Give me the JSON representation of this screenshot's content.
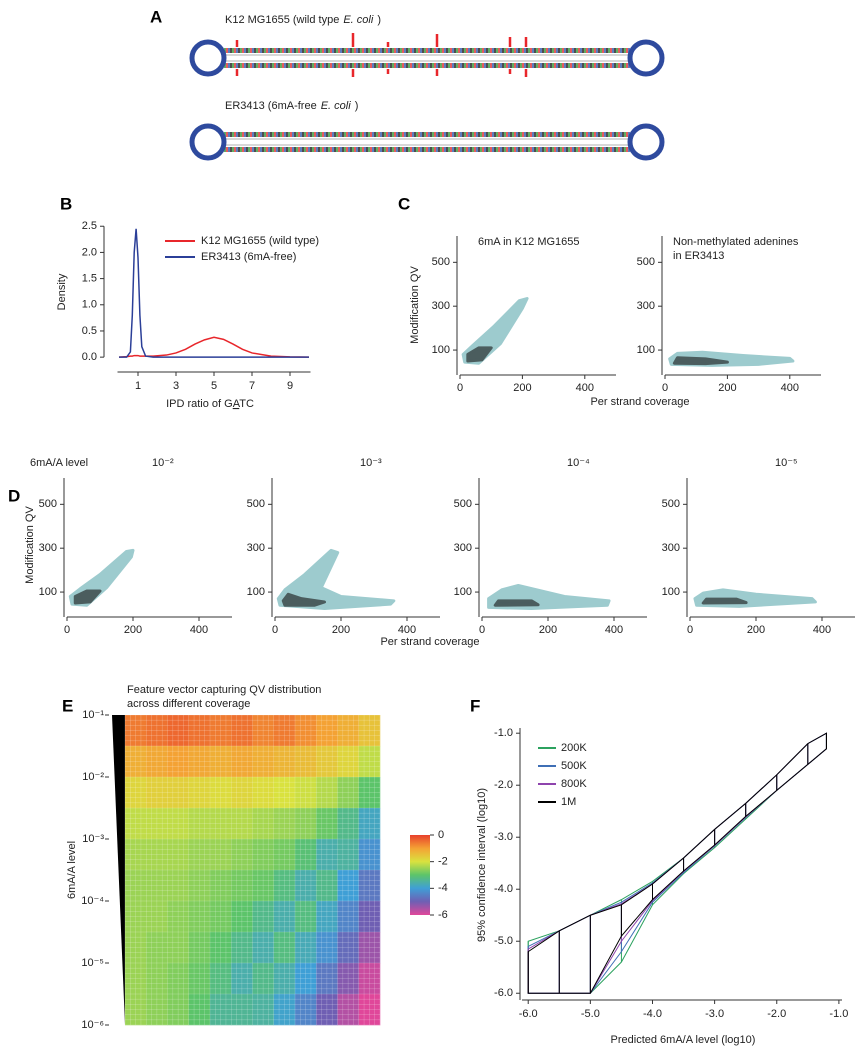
{
  "panel_labels": [
    "A",
    "B",
    "C",
    "D",
    "E",
    "F"
  ],
  "panel_a": {
    "strains": [
      [
        "K12 MG1655 (wild type",
        "E. coli",
        ")"
      ],
      [
        "ER3413 (6mA-free",
        "E. coli",
        ")"
      ]
    ]
  },
  "panel_c": {
    "ylabel": "Modification QV",
    "xlabel": "Per strand coverage"
  },
  "panel_d": {
    "row_label": "6mA/A level",
    "ylabel": "Modification QV",
    "xlabel": "Per strand coverage"
  },
  "chart_data": [
    {
      "type": "line",
      "ylabel": "Density",
      "xlabel": [
        "IPD ratio of G",
        "A",
        "TC"
      ],
      "x": [
        0,
        0.4,
        0.6,
        0.7,
        0.8,
        0.9,
        1.0,
        1.1,
        1.2,
        1.4,
        1.8,
        2.5,
        3,
        3.5,
        4,
        4.5,
        5,
        5.5,
        6,
        6.5,
        7,
        8,
        9,
        10
      ],
      "xlim": [
        -0.5,
        10.5
      ],
      "ylim": [
        -0.15,
        2.6
      ],
      "xticks": [
        1,
        3,
        5,
        7,
        9
      ],
      "yticks": [
        {
          "value": 0,
          "label": "0.0"
        },
        {
          "value": 0.5,
          "label": "0.5"
        },
        {
          "value": 1,
          "label": "1.0"
        },
        {
          "value": 1.5,
          "label": "1.5"
        },
        {
          "value": 2,
          "label": "2.0"
        },
        {
          "value": 2.5,
          "label": "2.5"
        }
      ],
      "series": [
        {
          "name": "K12 MG1655 (wild type)",
          "color": "#e8262b",
          "values": [
            0,
            0.01,
            0.02,
            0.02,
            0.03,
            0.03,
            0.03,
            0.02,
            0.02,
            0.02,
            0.02,
            0.04,
            0.08,
            0.15,
            0.25,
            0.33,
            0.38,
            0.34,
            0.25,
            0.15,
            0.08,
            0.02,
            0.005,
            0
          ]
        },
        {
          "name": "ER3413 (6mA-free)",
          "color": "#2b3f98",
          "values": [
            0,
            0,
            0.1,
            0.8,
            2.0,
            2.45,
            1.9,
            0.8,
            0.2,
            0.02,
            0,
            0,
            0,
            0,
            0,
            0,
            0,
            0,
            0,
            0,
            0,
            0,
            0,
            0
          ]
        }
      ]
    },
    {
      "type": "contour",
      "title": "6mA in K12 MG1655",
      "xlim": [
        0,
        500
      ],
      "ylim": [
        0,
        620
      ],
      "xticks": [
        0,
        200,
        400
      ],
      "yticks": [
        100,
        300,
        500
      ],
      "levels": [
        {
          "color": "#9dcbce",
          "x": [
            15,
            60,
            130,
            200,
            215,
            190,
            110,
            40,
            10
          ],
          "y": [
            45,
            40,
            130,
            290,
            335,
            325,
            210,
            120,
            80
          ]
        },
        {
          "color": "#3d4a4b",
          "x": [
            25,
            70,
            100,
            60,
            25
          ],
          "y": [
            50,
            55,
            110,
            110,
            80
          ]
        }
      ]
    },
    {
      "type": "contour",
      "title": [
        "Non-methylated adenines",
        "in ER3413"
      ],
      "xlim": [
        0,
        500
      ],
      "ylim": [
        0,
        620
      ],
      "xticks": [
        0,
        200,
        400
      ],
      "yticks": [
        100,
        300,
        500
      ],
      "levels": [
        {
          "color": "#9dcbce",
          "x": [
            20,
            150,
            300,
            410,
            400,
            250,
            120,
            40,
            15
          ],
          "y": [
            35,
            30,
            35,
            50,
            62,
            75,
            90,
            85,
            60
          ]
        },
        {
          "color": "#3d4a4b",
          "x": [
            30,
            130,
            200,
            130,
            40
          ],
          "y": [
            40,
            38,
            45,
            60,
            65
          ]
        }
      ]
    },
    {
      "type": "contour",
      "title": "10⁻²",
      "xlim": [
        0,
        500
      ],
      "ylim": [
        0,
        620
      ],
      "xticks": [
        0,
        200,
        400
      ],
      "yticks": [
        100,
        300,
        500
      ],
      "levels": [
        {
          "color": "#9dcbce",
          "x": [
            15,
            60,
            120,
            195,
            200,
            180,
            100,
            40,
            10
          ],
          "y": [
            45,
            40,
            120,
            260,
            290,
            285,
            180,
            115,
            80
          ]
        },
        {
          "color": "#3d4a4b",
          "x": [
            25,
            70,
            100,
            60,
            25
          ],
          "y": [
            50,
            55,
            105,
            105,
            80
          ]
        }
      ]
    },
    {
      "type": "contour",
      "title": "10⁻³",
      "xlim": [
        0,
        500
      ],
      "ylim": [
        0,
        620
      ],
      "xticks": [
        0,
        200,
        400
      ],
      "yticks": [
        100,
        300,
        500
      ],
      "levels": [
        {
          "color": "#9dcbce",
          "x": [
            15,
            150,
            350,
            360,
            200,
            140,
            190,
            170,
            90,
            30,
            10
          ],
          "y": [
            40,
            25,
            45,
            60,
            80,
            120,
            280,
            290,
            180,
            110,
            70
          ]
        },
        {
          "color": "#3d4a4b",
          "x": [
            30,
            120,
            150,
            80,
            40,
            25
          ],
          "y": [
            40,
            40,
            55,
            70,
            90,
            60
          ]
        }
      ]
    },
    {
      "type": "contour",
      "title": "10⁻⁴",
      "xlim": [
        0,
        500
      ],
      "ylim": [
        0,
        620
      ],
      "xticks": [
        0,
        200,
        400
      ],
      "yticks": [
        100,
        300,
        500
      ],
      "levels": [
        {
          "color": "#9dcbce",
          "x": [
            20,
            150,
            380,
            385,
            250,
            110,
            60,
            20
          ],
          "y": [
            30,
            25,
            40,
            60,
            80,
            130,
            110,
            70
          ]
        },
        {
          "color": "#3d4a4b",
          "x": [
            40,
            170,
            150,
            50
          ],
          "y": [
            40,
            42,
            60,
            60
          ]
        }
      ]
    },
    {
      "type": "contour",
      "title": "10⁻⁵",
      "xlim": [
        0,
        500
      ],
      "ylim": [
        0,
        620
      ],
      "xticks": [
        0,
        200,
        400
      ],
      "yticks": [
        100,
        300,
        500
      ],
      "levels": [
        {
          "color": "#9dcbce",
          "x": [
            20,
            150,
            380,
            370,
            200,
            100,
            40,
            15
          ],
          "y": [
            40,
            35,
            55,
            70,
            90,
            110,
            95,
            70
          ]
        },
        {
          "color": "#3d4a4b",
          "x": [
            40,
            170,
            140,
            50
          ],
          "y": [
            50,
            52,
            68,
            68
          ]
        }
      ]
    },
    {
      "type": "heatmap",
      "title": [
        "Feature vector capturing QV distribution",
        "across different coverage"
      ],
      "ylabel": "6mA/A level",
      "log_y": true,
      "ylim": [
        1e-06,
        0.1
      ],
      "yticks": [
        {
          "value": 0.1,
          "label": "10⁻¹"
        },
        {
          "value": 0.01,
          "label": "10⁻²"
        },
        {
          "value": 0.001,
          "label": "10⁻³"
        },
        {
          "value": 0.0001,
          "label": "10⁻⁴"
        },
        {
          "value": 1e-05,
          "label": "10⁻⁵"
        },
        {
          "value": 1e-06,
          "label": "10⁻⁶"
        }
      ],
      "values": [
        [
          -0.6,
          -0.5,
          -0.4,
          -0.5,
          -0.6,
          -0.5,
          -0.7,
          -0.6,
          -0.8,
          -1.0,
          -1.2,
          -1.5
        ],
        [
          -1.2,
          -1.1,
          -1.0,
          -1.1,
          -1.2,
          -1.1,
          -1.2,
          -1.3,
          -1.4,
          -1.6,
          -1.8,
          -2.2
        ],
        [
          -1.8,
          -1.7,
          -1.7,
          -1.8,
          -1.9,
          -1.8,
          -1.9,
          -2.0,
          -2.1,
          -2.3,
          -2.6,
          -3.0
        ],
        [
          -2.2,
          -2.2,
          -2.2,
          -2.3,
          -2.3,
          -2.3,
          -2.4,
          -2.5,
          -2.6,
          -2.9,
          -3.3,
          -3.8
        ],
        [
          -2.4,
          -2.4,
          -2.4,
          -2.5,
          -2.5,
          -2.6,
          -2.7,
          -2.8,
          -3.1,
          -3.6,
          -3.5,
          -4.2
        ],
        [
          -2.5,
          -2.5,
          -2.5,
          -2.6,
          -2.7,
          -2.8,
          -2.9,
          -3.2,
          -3.6,
          -3.3,
          -4.0,
          -4.6
        ],
        [
          -2.5,
          -2.5,
          -2.6,
          -2.7,
          -2.8,
          -3.0,
          -3.3,
          -3.6,
          -3.2,
          -3.8,
          -4.4,
          -5.0
        ],
        [
          -2.5,
          -2.6,
          -2.6,
          -2.8,
          -3.0,
          -3.3,
          -3.6,
          -3.2,
          -3.7,
          -4.2,
          -4.8,
          -5.4
        ],
        [
          -2.5,
          -2.6,
          -2.7,
          -2.9,
          -3.2,
          -3.6,
          -3.3,
          -3.6,
          -4.0,
          -4.6,
          -5.2,
          -5.8
        ],
        [
          -2.5,
          -2.6,
          -2.7,
          -3.0,
          -3.4,
          -3.4,
          -3.5,
          -3.9,
          -4.4,
          -5.0,
          -5.6,
          -6.0
        ]
      ],
      "colorbar": {
        "lim": [
          -6,
          0
        ],
        "ticks": [
          0,
          -2,
          -4,
          -6
        ],
        "colors": [
          "#e8412c",
          "#f4a234",
          "#d9e23f",
          "#5cc46a",
          "#3f9fd6",
          "#6f5fb3",
          "#e0479a"
        ]
      }
    },
    {
      "type": "interval",
      "xlabel": "Predicted 6mA/A level (log10)",
      "ylabel": "95% confidence interval (log10)",
      "x": [
        -6,
        -5.5,
        -5,
        -4.5,
        -4,
        -3.5,
        -3,
        -2.5,
        -2,
        -1.5,
        -1.2
      ],
      "xlim": [
        -6.1,
        -0.95
      ],
      "ylim": [
        -6.13,
        -0.9
      ],
      "xticks": [
        {
          "value": -6,
          "label": "-6.0"
        },
        {
          "value": -5,
          "label": "-5.0"
        },
        {
          "value": -4,
          "label": "-4.0"
        },
        {
          "value": -3,
          "label": "-3.0"
        },
        {
          "value": -2,
          "label": "-2.0"
        },
        {
          "value": -1,
          "label": "-1.0"
        }
      ],
      "yticks": [
        {
          "value": -1,
          "label": "-1.0"
        },
        {
          "value": -2,
          "label": "-2.0"
        },
        {
          "value": -3,
          "label": "-3.0"
        },
        {
          "value": -4,
          "label": "-4.0"
        },
        {
          "value": -5,
          "label": "-5.0"
        },
        {
          "value": -6,
          "label": "-6.0"
        }
      ],
      "series": [
        {
          "name": "200K",
          "color": "#2ca25f",
          "upper": [
            -5,
            -4.8,
            -4.5,
            -4.2,
            -3.85,
            -3.4,
            -2.85,
            -2.35,
            -1.8,
            -1.2,
            -1.0
          ],
          "lower": [
            -6,
            -6,
            -6,
            -5.4,
            -4.3,
            -3.7,
            -3.2,
            -2.65,
            -2.1,
            -1.6,
            -1.3
          ]
        },
        {
          "name": "500K",
          "color": "#3f6fb5",
          "upper": [
            -5.1,
            -4.8,
            -4.5,
            -4.25,
            -3.88,
            -3.4,
            -2.85,
            -2.35,
            -1.8,
            -1.2,
            -1.0
          ],
          "lower": [
            -6,
            -6,
            -6,
            -5.2,
            -4.25,
            -3.68,
            -3.17,
            -2.62,
            -2.1,
            -1.6,
            -1.3
          ]
        },
        {
          "name": "800K",
          "color": "#8e44ad",
          "upper": [
            -5.15,
            -4.8,
            -4.5,
            -4.28,
            -3.9,
            -3.4,
            -2.85,
            -2.35,
            -1.8,
            -1.2,
            -1.0
          ],
          "lower": [
            -6,
            -6,
            -6,
            -5.0,
            -4.22,
            -3.66,
            -3.16,
            -2.61,
            -2.1,
            -1.6,
            -1.3
          ]
        },
        {
          "name": "1M",
          "color": "#000000",
          "upper": [
            -5.2,
            -4.8,
            -4.5,
            -4.3,
            -3.9,
            -3.4,
            -2.85,
            -2.35,
            -1.8,
            -1.2,
            -1.0
          ],
          "lower": [
            -6,
            -6,
            -6,
            -4.9,
            -4.2,
            -3.65,
            -3.15,
            -2.6,
            -2.1,
            -1.6,
            -1.3
          ]
        }
      ]
    }
  ]
}
